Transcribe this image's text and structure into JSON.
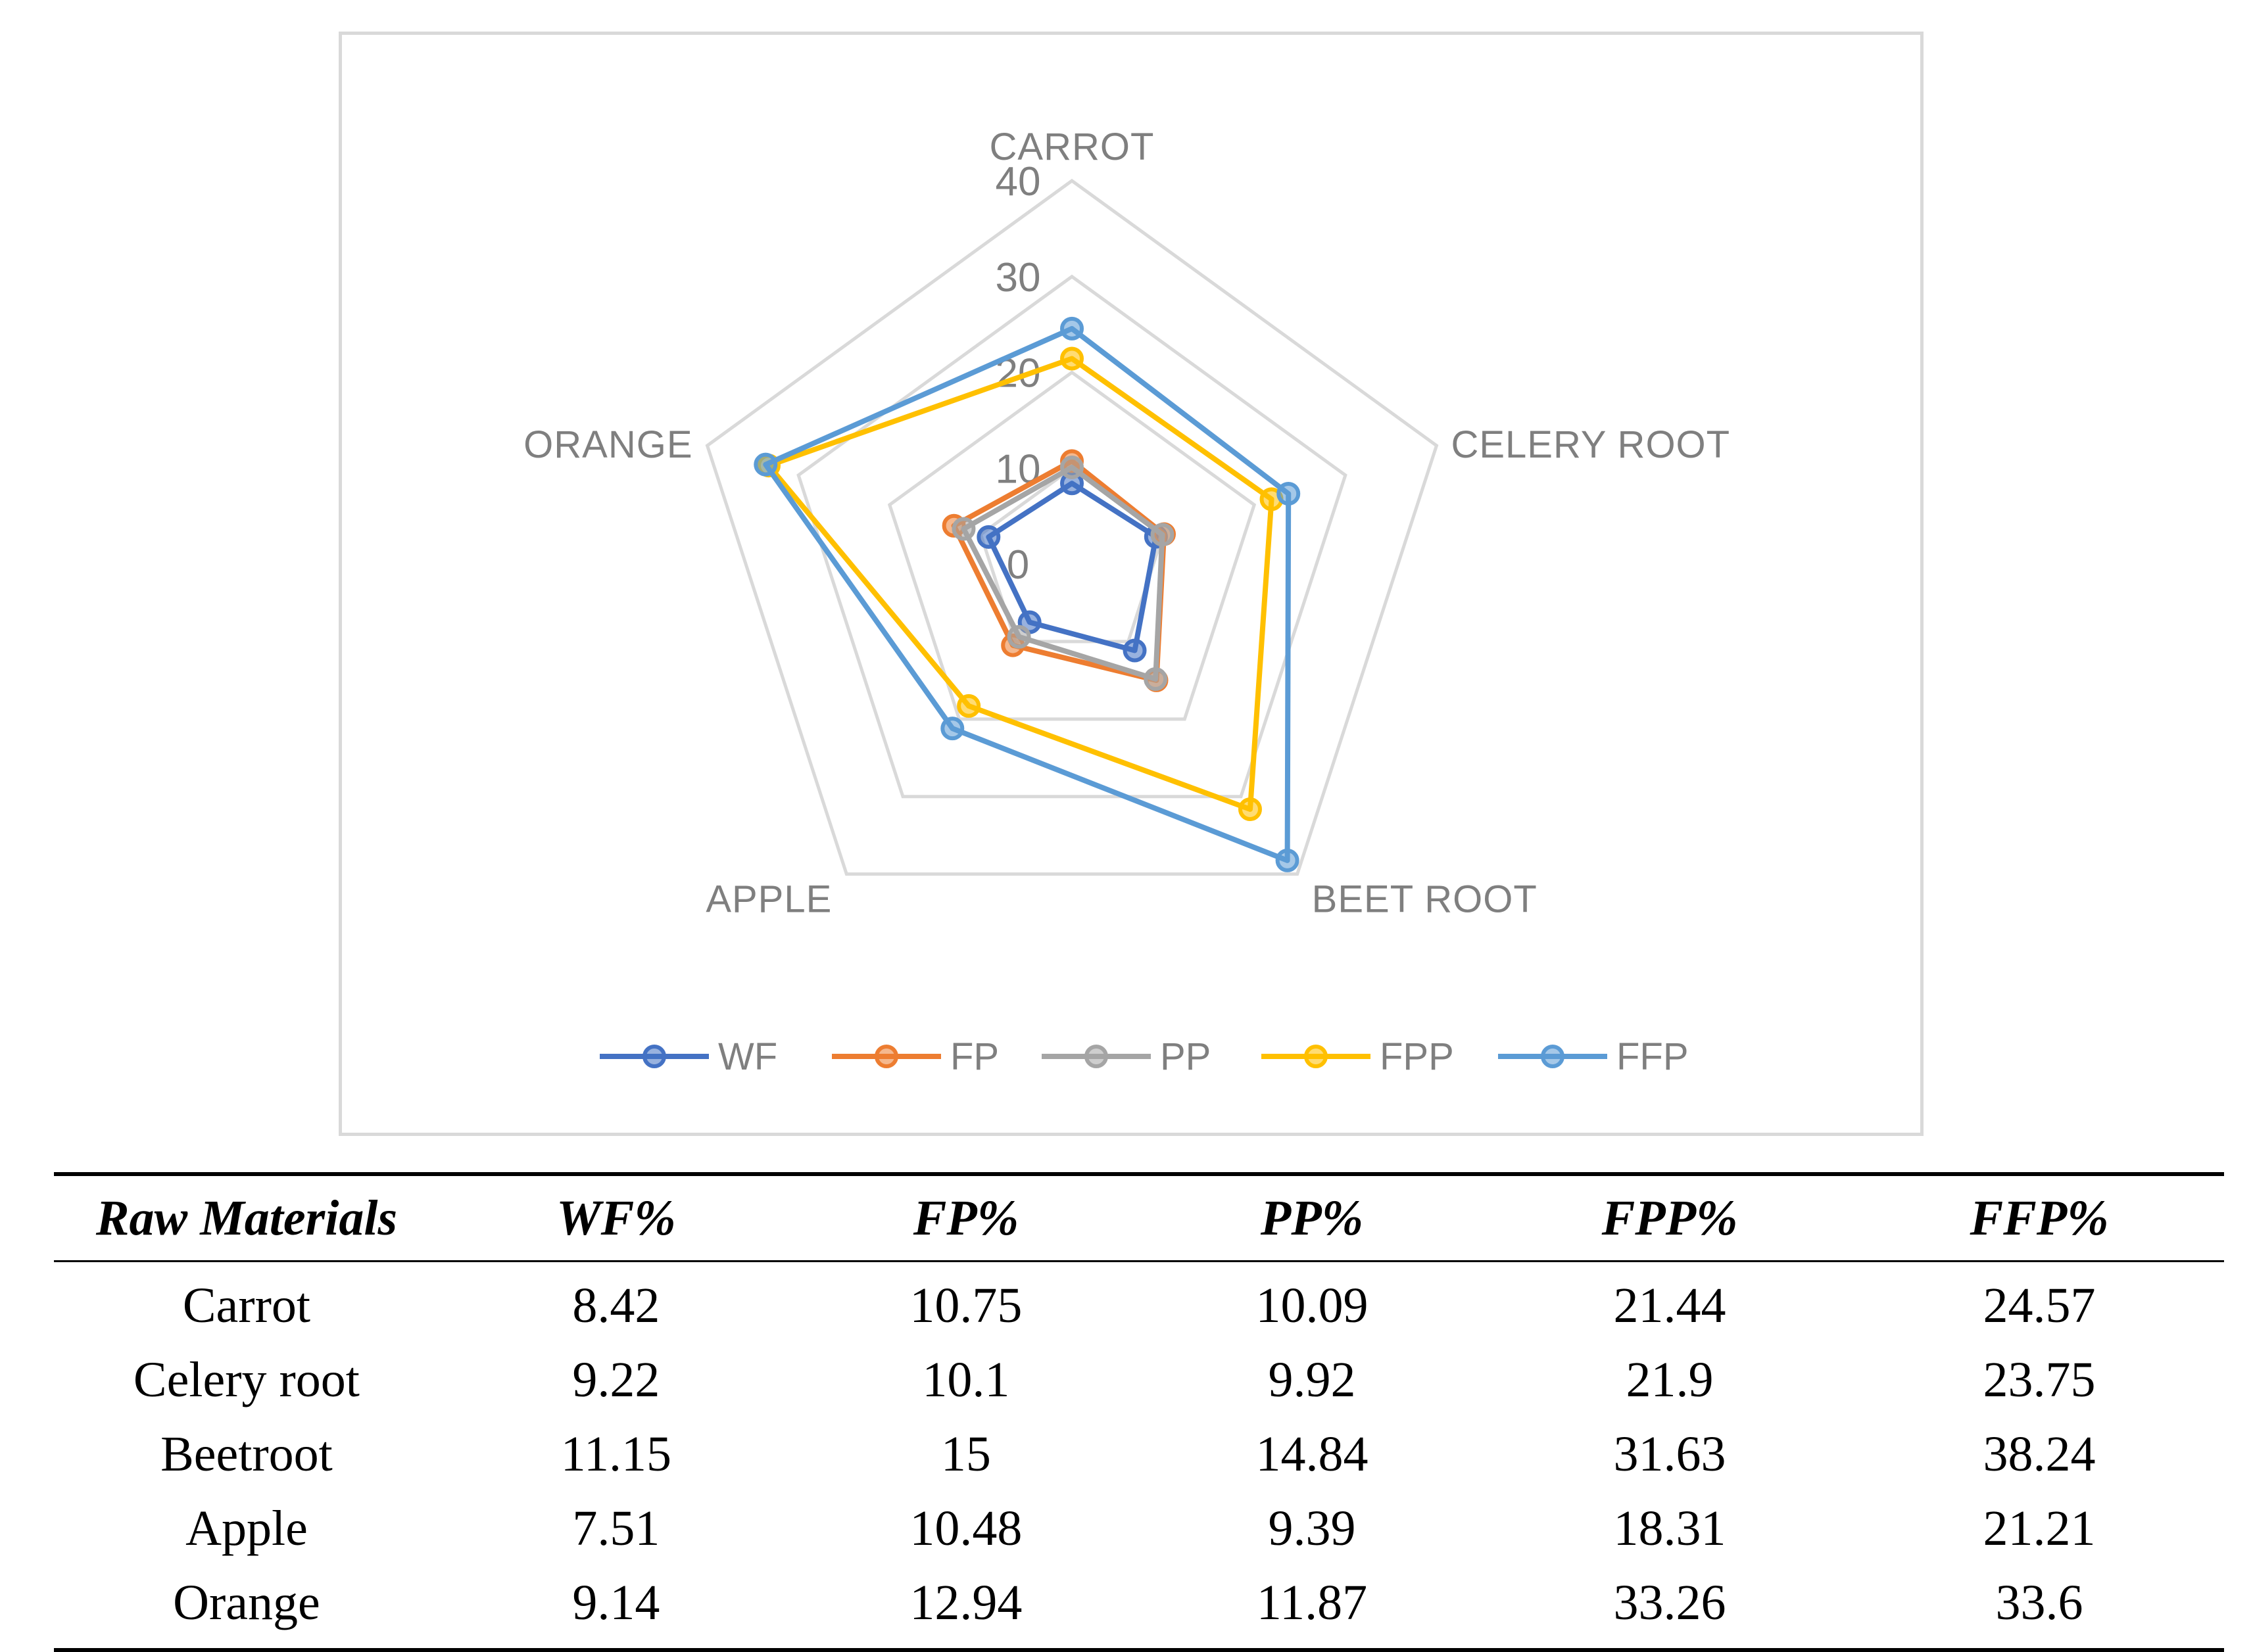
{
  "chart_data": {
    "type": "radar",
    "axes": [
      "CARROT",
      "CELERY ROOT",
      "BEET ROOT",
      "APPLE",
      "ORANGE"
    ],
    "radial_ticks": [
      "0",
      "10",
      "20",
      "30",
      "40"
    ],
    "rlim": [
      0,
      40
    ],
    "grid": true,
    "legend_position": "bottom",
    "series": [
      {
        "name": "WF",
        "color": "#4472c4",
        "values": [
          8.42,
          9.22,
          11.15,
          7.51,
          9.14
        ]
      },
      {
        "name": "FP",
        "color": "#ed7d31",
        "values": [
          10.75,
          10.1,
          15,
          10.48,
          12.94
        ]
      },
      {
        "name": "PP",
        "color": "#a5a5a5",
        "values": [
          10.09,
          9.92,
          14.84,
          9.39,
          11.87
        ]
      },
      {
        "name": "FPP",
        "color": "#ffc000",
        "values": [
          21.44,
          21.9,
          31.63,
          18.31,
          33.26
        ]
      },
      {
        "name": "FFP",
        "color": "#5b9bd5",
        "values": [
          24.57,
          23.75,
          38.24,
          21.21,
          33.6
        ]
      }
    ]
  },
  "table": {
    "headers": [
      "Raw Materials",
      "WF%",
      "FP%",
      "PP%",
      "FPP%",
      "FFP%"
    ],
    "rows": [
      [
        "Carrot",
        "8.42",
        "10.75",
        "10.09",
        "21.44",
        "24.57"
      ],
      [
        "Celery root",
        "9.22",
        "10.1",
        "9.92",
        "21.9",
        "23.75"
      ],
      [
        "Beetroot",
        "11.15",
        "15",
        "14.84",
        "31.63",
        "38.24"
      ],
      [
        "Apple",
        "7.51",
        "10.48",
        "9.39",
        "18.31",
        "21.21"
      ],
      [
        "Orange",
        "9.14",
        "12.94",
        "11.87",
        "33.26",
        "33.6"
      ]
    ]
  }
}
